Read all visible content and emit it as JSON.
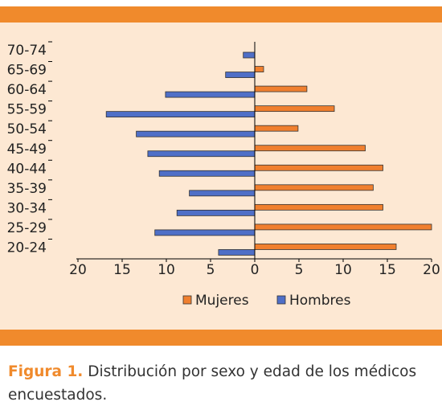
{
  "chart_data": {
    "type": "pyramid",
    "categories": [
      "20-24",
      "25-29",
      "30-34",
      "35-39",
      "40-44",
      "45-49",
      "50-54",
      "55-59",
      "60-64",
      "65-69",
      "70-74"
    ],
    "series": [
      {
        "name": "Mujeres",
        "color": "#f07f2e",
        "values": [
          16,
          20,
          14.5,
          13.4,
          14.5,
          12.5,
          4.9,
          9,
          5.9,
          1,
          0
        ]
      },
      {
        "name": "Hombres",
        "color": "#4f6fc7",
        "values": [
          -4.1,
          -11.3,
          -8.8,
          -7.4,
          -10.8,
          -12.1,
          -13.4,
          -16.8,
          -10.1,
          -3.3,
          -1.3
        ]
      }
    ],
    "xlim": [
      -20,
      20
    ],
    "xticks": [
      {
        "value": -20,
        "label": "20"
      },
      {
        "value": -15,
        "label": "15"
      },
      {
        "value": -10,
        "label": "10"
      },
      {
        "value": -5,
        "label": "5"
      },
      0,
      5,
      10,
      15,
      20
    ],
    "legend": "bottom"
  },
  "caption": {
    "label": "Figura 1.",
    "text": "Distribución por sexo y edad de los médicos encuestados."
  }
}
